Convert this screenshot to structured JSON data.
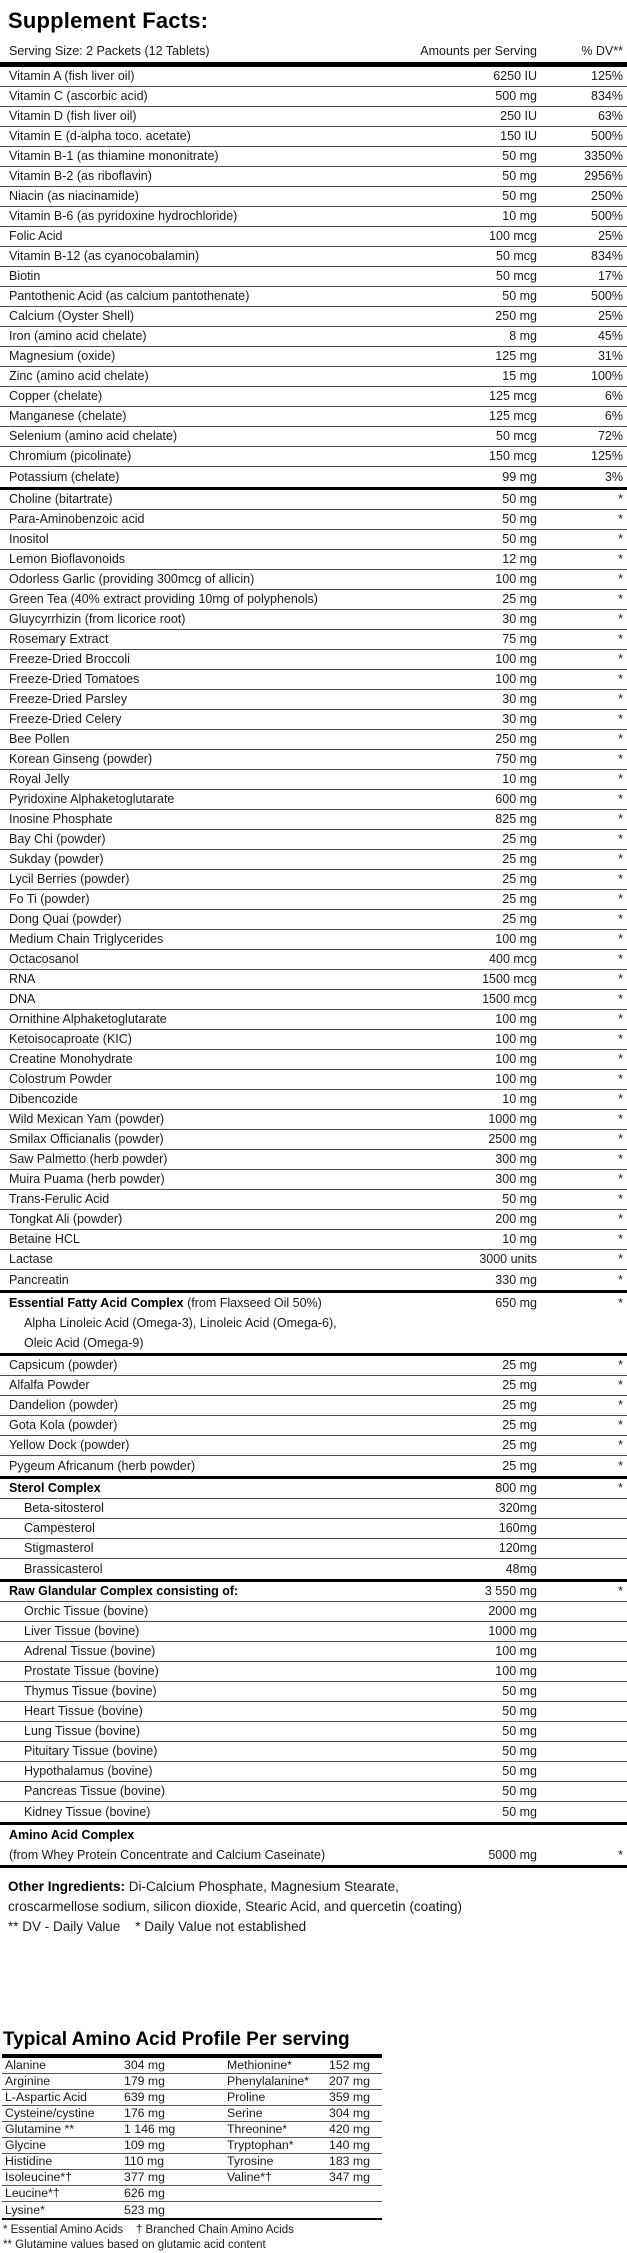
{
  "colors": {
    "text": "#1a1a1a",
    "rule_thin": "#4d4d4d",
    "rule_thick": "#000000",
    "background": "#ffffff"
  },
  "supplement_facts": {
    "title": "Supplement Facts:",
    "columns": {
      "serving_size": "Serving Size: 2 Packets (12 Tablets)",
      "amounts": "Amounts per Serving",
      "percent_dv": "% DV**"
    },
    "sections": [
      {
        "rows": [
          {
            "label": "Vitamin A (fish liver oil)",
            "amount": "6250 IU",
            "dv": "125%"
          },
          {
            "label": "Vitamin C (ascorbic acid)",
            "amount": "500 mg",
            "dv": "834%"
          },
          {
            "label": "Vitamin D (fish liver oil)",
            "amount": "250 IU",
            "dv": "63%"
          },
          {
            "label": "Vitamin E (d-alpha toco. acetate)",
            "amount": "150 IU",
            "dv": "500%"
          },
          {
            "label": "Vitamin B-1 (as thiamine mononitrate)",
            "amount": "50 mg",
            "dv": "3350%"
          },
          {
            "label": "Vitamin B-2 (as riboflavin)",
            "amount": "50 mg",
            "dv": "2956%"
          },
          {
            "label": "Niacin (as niacinamide)",
            "amount": "50 mg",
            "dv": "250%"
          },
          {
            "label": "Vitamin B-6 (as pyridoxine hydrochloride)",
            "amount": "10 mg",
            "dv": "500%"
          },
          {
            "label": "Folic Acid",
            "amount": "100 mcg",
            "dv": "25%"
          },
          {
            "label": "Vitamin B-12 (as cyanocobalamin)",
            "amount": "50 mcg",
            "dv": "834%"
          },
          {
            "label": "Biotin",
            "amount": "50 mcg",
            "dv": "17%"
          },
          {
            "label": "Pantothenic Acid (as calcium pantothenate)",
            "amount": "50 mg",
            "dv": "500%"
          },
          {
            "label": "Calcium (Oyster Shell)",
            "amount": "250 mg",
            "dv": "25%"
          },
          {
            "label": "Iron (amino acid chelate)",
            "amount": "8 mg",
            "dv": "45%"
          },
          {
            "label": "Magnesium (oxide)",
            "amount": "125 mg",
            "dv": "31%"
          },
          {
            "label": "Zinc (amino acid chelate)",
            "amount": "15 mg",
            "dv": "100%"
          },
          {
            "label": "Copper (chelate)",
            "amount": "125 mcg",
            "dv": "6%"
          },
          {
            "label": "Manganese (chelate)",
            "amount": "125 mcg",
            "dv": "6%"
          },
          {
            "label": "Selenium (amino acid chelate)",
            "amount": "50 mcg",
            "dv": "72%"
          },
          {
            "label": "Chromium (picolinate)",
            "amount": "150 mcg",
            "dv": "125%"
          },
          {
            "label": "Potassium (chelate)",
            "amount": "99 mg",
            "dv": "3%"
          }
        ]
      },
      {
        "rows": [
          {
            "label": "Choline (bitartrate)",
            "amount": "50 mg",
            "dv": "*"
          },
          {
            "label": "Para-Aminobenzoic acid",
            "amount": "50 mg",
            "dv": "*"
          },
          {
            "label": "Inositol",
            "amount": "50 mg",
            "dv": "*"
          },
          {
            "label": "Lemon Bioflavonoids",
            "amount": "12 mg",
            "dv": "*"
          },
          {
            "label": "Odorless Garlic (providing 300mcg of allicin)",
            "amount": "100 mg",
            "dv": "*"
          },
          {
            "label": "Green Tea (40% extract providing 10mg of polyphenols)",
            "amount": "25 mg",
            "dv": "*"
          },
          {
            "label": "Gluycyrrhizin (from licorice root)",
            "amount": "30 mg",
            "dv": "*"
          },
          {
            "label": "Rosemary Extract",
            "amount": "75 mg",
            "dv": "*"
          },
          {
            "label": "Freeze-Dried Broccoli",
            "amount": "100 mg",
            "dv": "*"
          },
          {
            "label": "Freeze-Dried Tomatoes",
            "amount": "100 mg",
            "dv": "*"
          },
          {
            "label": "Freeze-Dried Parsley",
            "amount": "30 mg",
            "dv": "*"
          },
          {
            "label": "Freeze-Dried Celery",
            "amount": "30 mg",
            "dv": "*"
          },
          {
            "label": "Bee Pollen",
            "amount": "250 mg",
            "dv": "*"
          },
          {
            "label": "Korean Ginseng (powder)",
            "amount": "750 mg",
            "dv": "*"
          },
          {
            "label": "Royal Jelly",
            "amount": "10 mg",
            "dv": "*"
          },
          {
            "label": "Pyridoxine Alphaketoglutarate",
            "amount": "600 mg",
            "dv": "*"
          },
          {
            "label": "Inosine Phosphate",
            "amount": "825 mg",
            "dv": "*"
          },
          {
            "label": "Bay Chi (powder)",
            "amount": "25 mg",
            "dv": "*"
          },
          {
            "label": "Sukday (powder)",
            "amount": "25 mg",
            "dv": "*"
          },
          {
            "label": "Lycil Berries (powder)",
            "amount": "25 mg",
            "dv": "*"
          },
          {
            "label": "Fo Ti (powder)",
            "amount": "25 mg",
            "dv": "*"
          },
          {
            "label": "Dong Quai (powder)",
            "amount": "25 mg",
            "dv": "*"
          },
          {
            "label": "Medium Chain Triglycerides",
            "amount": "100 mg",
            "dv": "*"
          },
          {
            "label": "Octacosanol",
            "amount": "400 mcg",
            "dv": "*"
          },
          {
            "label": "RNA",
            "amount": "1500 mcg",
            "dv": "*"
          },
          {
            "label": "DNA",
            "amount": "1500 mcg",
            "dv": "*"
          },
          {
            "label": "Ornithine Alphaketoglutarate",
            "amount": "100 mg",
            "dv": "*"
          },
          {
            "label": "Ketoisocaproate (KIC)",
            "amount": "100 mg",
            "dv": "*"
          },
          {
            "label": "Creatine Monohydrate",
            "amount": "100 mg",
            "dv": "*"
          },
          {
            "label": "Colostrum Powder",
            "amount": "100 mg",
            "dv": "*"
          },
          {
            "label": "Dibencozide",
            "amount": "10 mg",
            "dv": "*"
          },
          {
            "label": "Wild Mexican Yam (powder)",
            "amount": "1000 mg",
            "dv": "*"
          },
          {
            "label": "Smilax Officianalis (powder)",
            "amount": "2500 mg",
            "dv": "*"
          },
          {
            "label": "Saw Palmetto (herb powder)",
            "amount": "300 mg",
            "dv": "*"
          },
          {
            "label": "Muira Puama (herb powder)",
            "amount": "300 mg",
            "dv": "*"
          },
          {
            "label": "Trans-Ferulic Acid",
            "amount": "50 mg",
            "dv": "*"
          },
          {
            "label": "Tongkat Ali (powder)",
            "amount": "200 mg",
            "dv": "*"
          },
          {
            "label": "Betaine HCL",
            "amount": "10 mg",
            "dv": "*"
          },
          {
            "label": "Lactase",
            "amount": "3000 units",
            "dv": "*"
          },
          {
            "label": "Pancreatin",
            "amount": "330 mg",
            "dv": "*"
          }
        ]
      },
      {
        "rows": [
          {
            "label_bold": "Essential Fatty Acid Complex",
            "label": " (from Flaxseed Oil 50%)",
            "amount": "650 mg",
            "dv": "*",
            "nb": true
          },
          {
            "label": "Alpha Linoleic Acid (Omega-3), Linoleic Acid (Omega-6),",
            "indent": true,
            "nb": true
          },
          {
            "label": "Oleic Acid (Omega-9)",
            "indent": true,
            "nb": true
          }
        ]
      },
      {
        "rows": [
          {
            "label": "Capsicum (powder)",
            "amount": "25 mg",
            "dv": "*"
          },
          {
            "label": "Alfalfa Powder",
            "amount": "25 mg",
            "dv": "*"
          },
          {
            "label": "Dandelion (powder)",
            "amount": "25 mg",
            "dv": "*"
          },
          {
            "label": "Gota Kola (powder)",
            "amount": "25 mg",
            "dv": "*"
          },
          {
            "label": "Yellow Dock (powder)",
            "amount": "25 mg",
            "dv": "*"
          },
          {
            "label": "Pygeum Africanum (herb powder)",
            "amount": "25 mg",
            "dv": "*"
          }
        ]
      },
      {
        "rows": [
          {
            "label_bold": "Sterol Complex",
            "amount": "800 mg",
            "dv": "*"
          },
          {
            "label": "Beta-sitosterol",
            "amount": "320mg",
            "indent": true
          },
          {
            "label": "Campesterol",
            "amount": "160mg",
            "indent": true
          },
          {
            "label": "Stigmasterol",
            "amount": "120mg",
            "indent": true
          },
          {
            "label": "Brassicasterol",
            "amount": "48mg",
            "indent": true
          }
        ]
      },
      {
        "rows": [
          {
            "label_bold": "Raw Glandular Complex consisting of:",
            "amount": "3 550 mg",
            "dv": "*"
          },
          {
            "label": "Orchic Tissue (bovine)",
            "amount": "2000 mg",
            "indent": true
          },
          {
            "label": "Liver Tissue (bovine)",
            "amount": "1000 mg",
            "indent": true
          },
          {
            "label": "Adrenal Tissue (bovine)",
            "amount": "100 mg",
            "indent": true
          },
          {
            "label": "Prostate Tissue (bovine)",
            "amount": "100 mg",
            "indent": true
          },
          {
            "label": "Thymus Tissue (bovine)",
            "amount": "50 mg",
            "indent": true
          },
          {
            "label": "Heart Tissue (bovine)",
            "amount": "50 mg",
            "indent": true
          },
          {
            "label": "Lung Tissue (bovine)",
            "amount": "50 mg",
            "indent": true
          },
          {
            "label": "Pituitary Tissue (bovine)",
            "amount": "50 mg",
            "indent": true
          },
          {
            "label": "Hypothalamus (bovine)",
            "amount": "50 mg",
            "indent": true
          },
          {
            "label": "Pancreas Tissue (bovine)",
            "amount": "50 mg",
            "indent": true
          },
          {
            "label": "Kidney Tissue (bovine)",
            "amount": "50 mg",
            "indent": true
          }
        ]
      },
      {
        "rows": [
          {
            "label_bold": "Amino Acid Complex",
            "nb": true
          },
          {
            "label": "(from Whey Protein Concentrate and Calcium Caseinate)",
            "amount": "5000 mg",
            "dv": "*"
          }
        ]
      }
    ]
  },
  "footnotes": {
    "other_ingredients_label": "Other Ingredients:",
    "other_ingredients_rest1": " Di-Calcium Phosphate, Magnesium Stearate,",
    "other_ingredients_line2": "croscarmellose sodium, silicon dioxide, Stearic Acid, and quercetin (coating)",
    "dv_note": "** DV - Daily Value    * Daily Value not established"
  },
  "amino_profile": {
    "title": "Typical Amino Acid Profile Per serving",
    "rows": [
      {
        "left_name": "Alanine",
        "left_value": "304 mg",
        "right_name": "Methionine*",
        "right_value": "152 mg"
      },
      {
        "left_name": "Arginine",
        "left_value": "179 mg",
        "right_name": "Phenylalanine*",
        "right_value": "207 mg"
      },
      {
        "left_name": "L-Aspartic Acid",
        "left_value": "639 mg",
        "right_name": "Proline",
        "right_value": "359 mg"
      },
      {
        "left_name": "Cysteine/cystine",
        "left_value": "176 mg",
        "right_name": "Serine",
        "right_value": "304 mg"
      },
      {
        "left_name": "Glutamine **",
        "left_value": "1 146 mg",
        "right_name": "Threonine*",
        "right_value": "420 mg"
      },
      {
        "left_name": "Glycine",
        "left_value": "109 mg",
        "right_name": "Tryptophan*",
        "right_value": "140 mg"
      },
      {
        "left_name": "Histidine",
        "left_value": "110 mg",
        "right_name": "Tyrosine",
        "right_value": "183 mg"
      },
      {
        "left_name": "Isoleucine*†",
        "left_value": "377 mg",
        "right_name": "Valine*†",
        "right_value": "347 mg"
      },
      {
        "left_name": "Leucine*†",
        "left_value": "626 mg",
        "right_name": "",
        "right_value": ""
      },
      {
        "left_name": "Lysine*",
        "left_value": "523 mg",
        "right_name": "",
        "right_value": ""
      }
    ],
    "footnote1": "* Essential Amino Acids    † Branched Chain Amino Acids",
    "footnote2": "** Glutamine values based on glutamic acid content"
  }
}
